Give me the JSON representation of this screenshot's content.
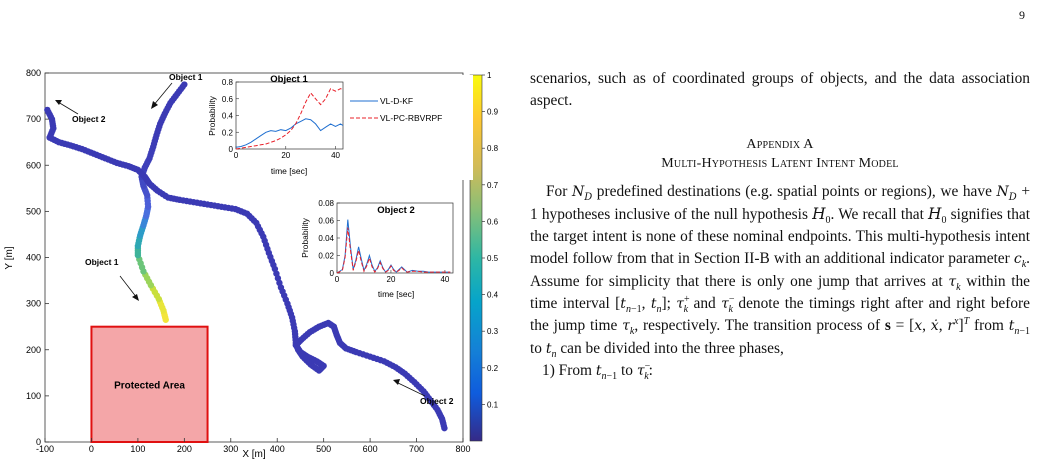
{
  "page_number": "9",
  "figure": {
    "chart_data": [
      {
        "type": "scatter",
        "xlabel": "X [m]",
        "ylabel": "Y [m]",
        "xlim": [
          -100,
          800
        ],
        "ylim": [
          0,
          800
        ],
        "x_ticks": [
          "-100",
          "0",
          "100",
          "200",
          "300",
          "400",
          "500",
          "600",
          "700",
          "800"
        ],
        "y_ticks": [
          "0",
          "100",
          "200",
          "300",
          "400",
          "500",
          "600",
          "700",
          "800"
        ],
        "colorbar": {
          "range": [
            0,
            1
          ],
          "ticks": [
            "0.1",
            "0.2",
            "0.3",
            "0.4",
            "0.5",
            "0.6",
            "0.7",
            "0.8",
            "0.9",
            "1"
          ]
        },
        "protected_area": {
          "label": "Protected Area",
          "x": [
            0,
            250
          ],
          "y": [
            0,
            250
          ],
          "color": "#f4a6a8",
          "edge": "#e01010"
        },
        "trajectories": [
          {
            "points": [
              [
                160,
                265
              ],
              [
                155,
                285
              ],
              [
                145,
                310
              ],
              [
                128,
                340
              ],
              [
                112,
                370
              ],
              [
                100,
                405
              ],
              [
                100,
                425
              ],
              [
                105,
                448
              ],
              [
                112,
                470
              ],
              [
                118,
                490
              ],
              [
                122,
                510
              ],
              [
                120,
                535
              ],
              [
                112,
                555
              ],
              [
                108,
                575
              ],
              [
                115,
                595
              ],
              [
                125,
                615
              ],
              [
                133,
                640
              ],
              [
                140,
                665
              ],
              [
                148,
                690
              ],
              [
                158,
                712
              ],
              [
                170,
                735
              ],
              [
                185,
                755
              ],
              [
                200,
                775
              ]
            ],
            "colors": [
              "#f3e53a",
              "#e8e53a",
              "#c9df3c",
              "#9bd45a",
              "#6cc57a",
              "#3fb39a",
              "#2ea8b4",
              "#2d9cc8",
              "#3a86d8",
              "#4a70de",
              "#4c5fd8",
              "#4652cc",
              "#4149c4",
              "#3e42bd",
              "#3e40ba",
              "#3d3eb8",
              "#3c3cb6",
              "#3c3bb5",
              "#3b3ab4",
              "#3b3ab4",
              "#3b3ab4",
              "#3b3ab4",
              "#3b3ab4"
            ]
          },
          {
            "points": [
              [
                760,
                30
              ],
              [
                755,
                50
              ],
              [
                745,
                70
              ],
              [
                730,
                90
              ],
              [
                715,
                110
              ],
              [
                695,
                130
              ],
              [
                675,
                148
              ],
              [
                655,
                162
              ],
              [
                630,
                175
              ],
              [
                600,
                185
              ],
              [
                570,
                195
              ],
              [
                548,
                203
              ],
              [
                535,
                215
              ],
              [
                528,
                232
              ],
              [
                522,
                250
              ],
              [
                510,
                258
              ],
              [
                490,
                250
              ],
              [
                470,
                238
              ],
              [
                452,
                222
              ],
              [
                440,
                210
              ],
              [
                450,
                195
              ],
              [
                465,
                185
              ],
              [
                485,
                175
              ],
              [
                500,
                165
              ],
              [
                490,
                155
              ],
              [
                472,
                168
              ],
              [
                455,
                185
              ],
              [
                445,
                200
              ],
              [
                440,
                215
              ],
              [
                438,
                240
              ],
              [
                432,
                270
              ],
              [
                422,
                300
              ],
              [
                408,
                335
              ],
              [
                395,
                375
              ],
              [
                382,
                410
              ],
              [
                370,
                445
              ],
              [
                355,
                475
              ],
              [
                335,
                495
              ],
              [
                310,
                505
              ],
              [
                280,
                510
              ],
              [
                250,
                515
              ],
              [
                220,
                520
              ],
              [
                190,
                525
              ],
              [
                165,
                530
              ],
              [
                142,
                545
              ],
              [
                125,
                560
              ],
              [
                115,
                575
              ],
              [
                100,
                590
              ],
              [
                80,
                598
              ],
              [
                55,
                605
              ],
              [
                30,
                615
              ],
              [
                5,
                625
              ],
              [
                -20,
                635
              ],
              [
                -45,
                643
              ],
              [
                -70,
                650
              ],
              [
                -90,
                660
              ],
              [
                -82,
                680
              ],
              [
                -85,
                700
              ],
              [
                -95,
                720
              ]
            ],
            "colors": [
              "#3b3ab4"
            ]
          }
        ],
        "annotations": [
          "Object 1",
          "Object 2",
          "Object 1",
          "Object 2"
        ]
      },
      {
        "type": "line",
        "title": "Object 1",
        "xlabel": "time [sec]",
        "ylabel": "Probability",
        "xlim": [
          0,
          43
        ],
        "ylim": [
          0,
          0.8
        ],
        "x_ticks": [
          "0",
          "20",
          "40"
        ],
        "y_ticks": [
          "0",
          "0.2",
          "0.4",
          "0.6",
          "0.8"
        ],
        "legend": "right",
        "series": [
          {
            "name": "VL-D-KF",
            "color": "#1f6fd0",
            "dash": false,
            "x": [
              0,
              2,
              4,
              6,
              8,
              10,
              12,
              14,
              16,
              18,
              20,
              22,
              24,
              26,
              28,
              30,
              32,
              34,
              36,
              38,
              40,
              42,
              43
            ],
            "y": [
              0.02,
              0.03,
              0.05,
              0.08,
              0.12,
              0.16,
              0.2,
              0.22,
              0.21,
              0.23,
              0.22,
              0.25,
              0.3,
              0.33,
              0.36,
              0.35,
              0.3,
              0.22,
              0.26,
              0.3,
              0.27,
              0.3,
              0.28
            ]
          },
          {
            "name": "VL-PC-RBVRPF",
            "color": "#e8202a",
            "dash": true,
            "x": [
              0,
              2,
              4,
              6,
              8,
              10,
              12,
              14,
              16,
              18,
              20,
              22,
              24,
              26,
              28,
              30,
              32,
              34,
              36,
              38,
              40,
              42,
              43
            ],
            "y": [
              0.0,
              0.01,
              0.02,
              0.03,
              0.04,
              0.05,
              0.06,
              0.08,
              0.1,
              0.13,
              0.17,
              0.22,
              0.3,
              0.42,
              0.56,
              0.67,
              0.6,
              0.53,
              0.6,
              0.72,
              0.69,
              0.72,
              0.71
            ]
          }
        ]
      },
      {
        "type": "line",
        "title": "Object 2",
        "xlabel": "time [sec]",
        "ylabel": "Probability",
        "xlim": [
          0,
          43
        ],
        "ylim": [
          0,
          0.08
        ],
        "x_ticks": [
          "0",
          "20",
          "40"
        ],
        "y_ticks": [
          "0",
          "0.02",
          "0.04",
          "0.06",
          "0.08"
        ],
        "series": [
          {
            "name": "VL-D-KF",
            "color": "#1f6fd0",
            "dash": false,
            "x": [
              0,
              2,
              3,
              4,
              5,
              6,
              7,
              8,
              9,
              10,
              11,
              12,
              13,
              14,
              15,
              16,
              17,
              18,
              19,
              20,
              21,
              22,
              23,
              24,
              25,
              26,
              28,
              30,
              32,
              34,
              36,
              38,
              40,
              42
            ],
            "y": [
              0,
              0.004,
              0.02,
              0.061,
              0.03,
              0.004,
              0.015,
              0.03,
              0.016,
              0.003,
              0.01,
              0.02,
              0.009,
              0.002,
              0.006,
              0.014,
              0.006,
              0.001,
              0.004,
              0.009,
              0.004,
              0.001,
              0.004,
              0.007,
              0.004,
              0.001,
              0.003,
              0.002,
              0.002,
              0.001,
              0.001,
              0.001,
              0.001,
              0.001
            ]
          },
          {
            "name": "VL-PC-RBVRPF",
            "color": "#e8202a",
            "dash": true,
            "x": [
              0,
              2,
              3,
              4,
              5,
              6,
              7,
              8,
              9,
              10,
              11,
              12,
              13,
              14,
              15,
              16,
              17,
              18,
              19,
              20,
              21,
              22,
              23,
              24,
              25,
              26,
              28,
              30,
              32,
              34,
              36,
              38,
              40,
              42
            ],
            "y": [
              0,
              0.003,
              0.018,
              0.052,
              0.026,
              0.003,
              0.013,
              0.026,
              0.013,
              0.002,
              0.008,
              0.017,
              0.007,
              0.001,
              0.005,
              0.012,
              0.005,
              0.001,
              0.003,
              0.008,
              0.003,
              0.001,
              0.003,
              0.006,
              0.003,
              0.001,
              0.002,
              0.002,
              0.001,
              0.001,
              0.001,
              0.001,
              0.001,
              0.001
            ]
          }
        ]
      }
    ]
  },
  "text": {
    "para1": "scenarios, such as of coordinated groups of objects, and the data association aspect.",
    "appendix_label": "Appendix A",
    "appendix_title": "Multi-Hypothesis Latent Intent Model",
    "para2_a": "For ",
    "para2_b": " predefined destinations (e.g. spatial points or regions), we have ",
    "para2_c": " hypotheses inclusive of the null hypothesis ",
    "para2_d": ". We recall that ",
    "para2_e": " signifies that the target intent is none of these nominal endpoints. This multi-hypothesis intent model follow from that in Section II-B with an additional indicator parameter ",
    "para2_f": ". Assume for simplicity that there is only one jump that arrives at ",
    "para2_g": " within the time interval ",
    "para2_h": "; ",
    "para2_i": " and ",
    "para2_j": " denote the timings right after and right before the jump time ",
    "para2_k": ", respectively. The transition process of ",
    "para2_l": " from ",
    "para2_m": " to ",
    "para2_n": " can be divided into the three phases,",
    "step1_a": "1) From ",
    "step1_b": " to ",
    "step1_c": ":"
  }
}
